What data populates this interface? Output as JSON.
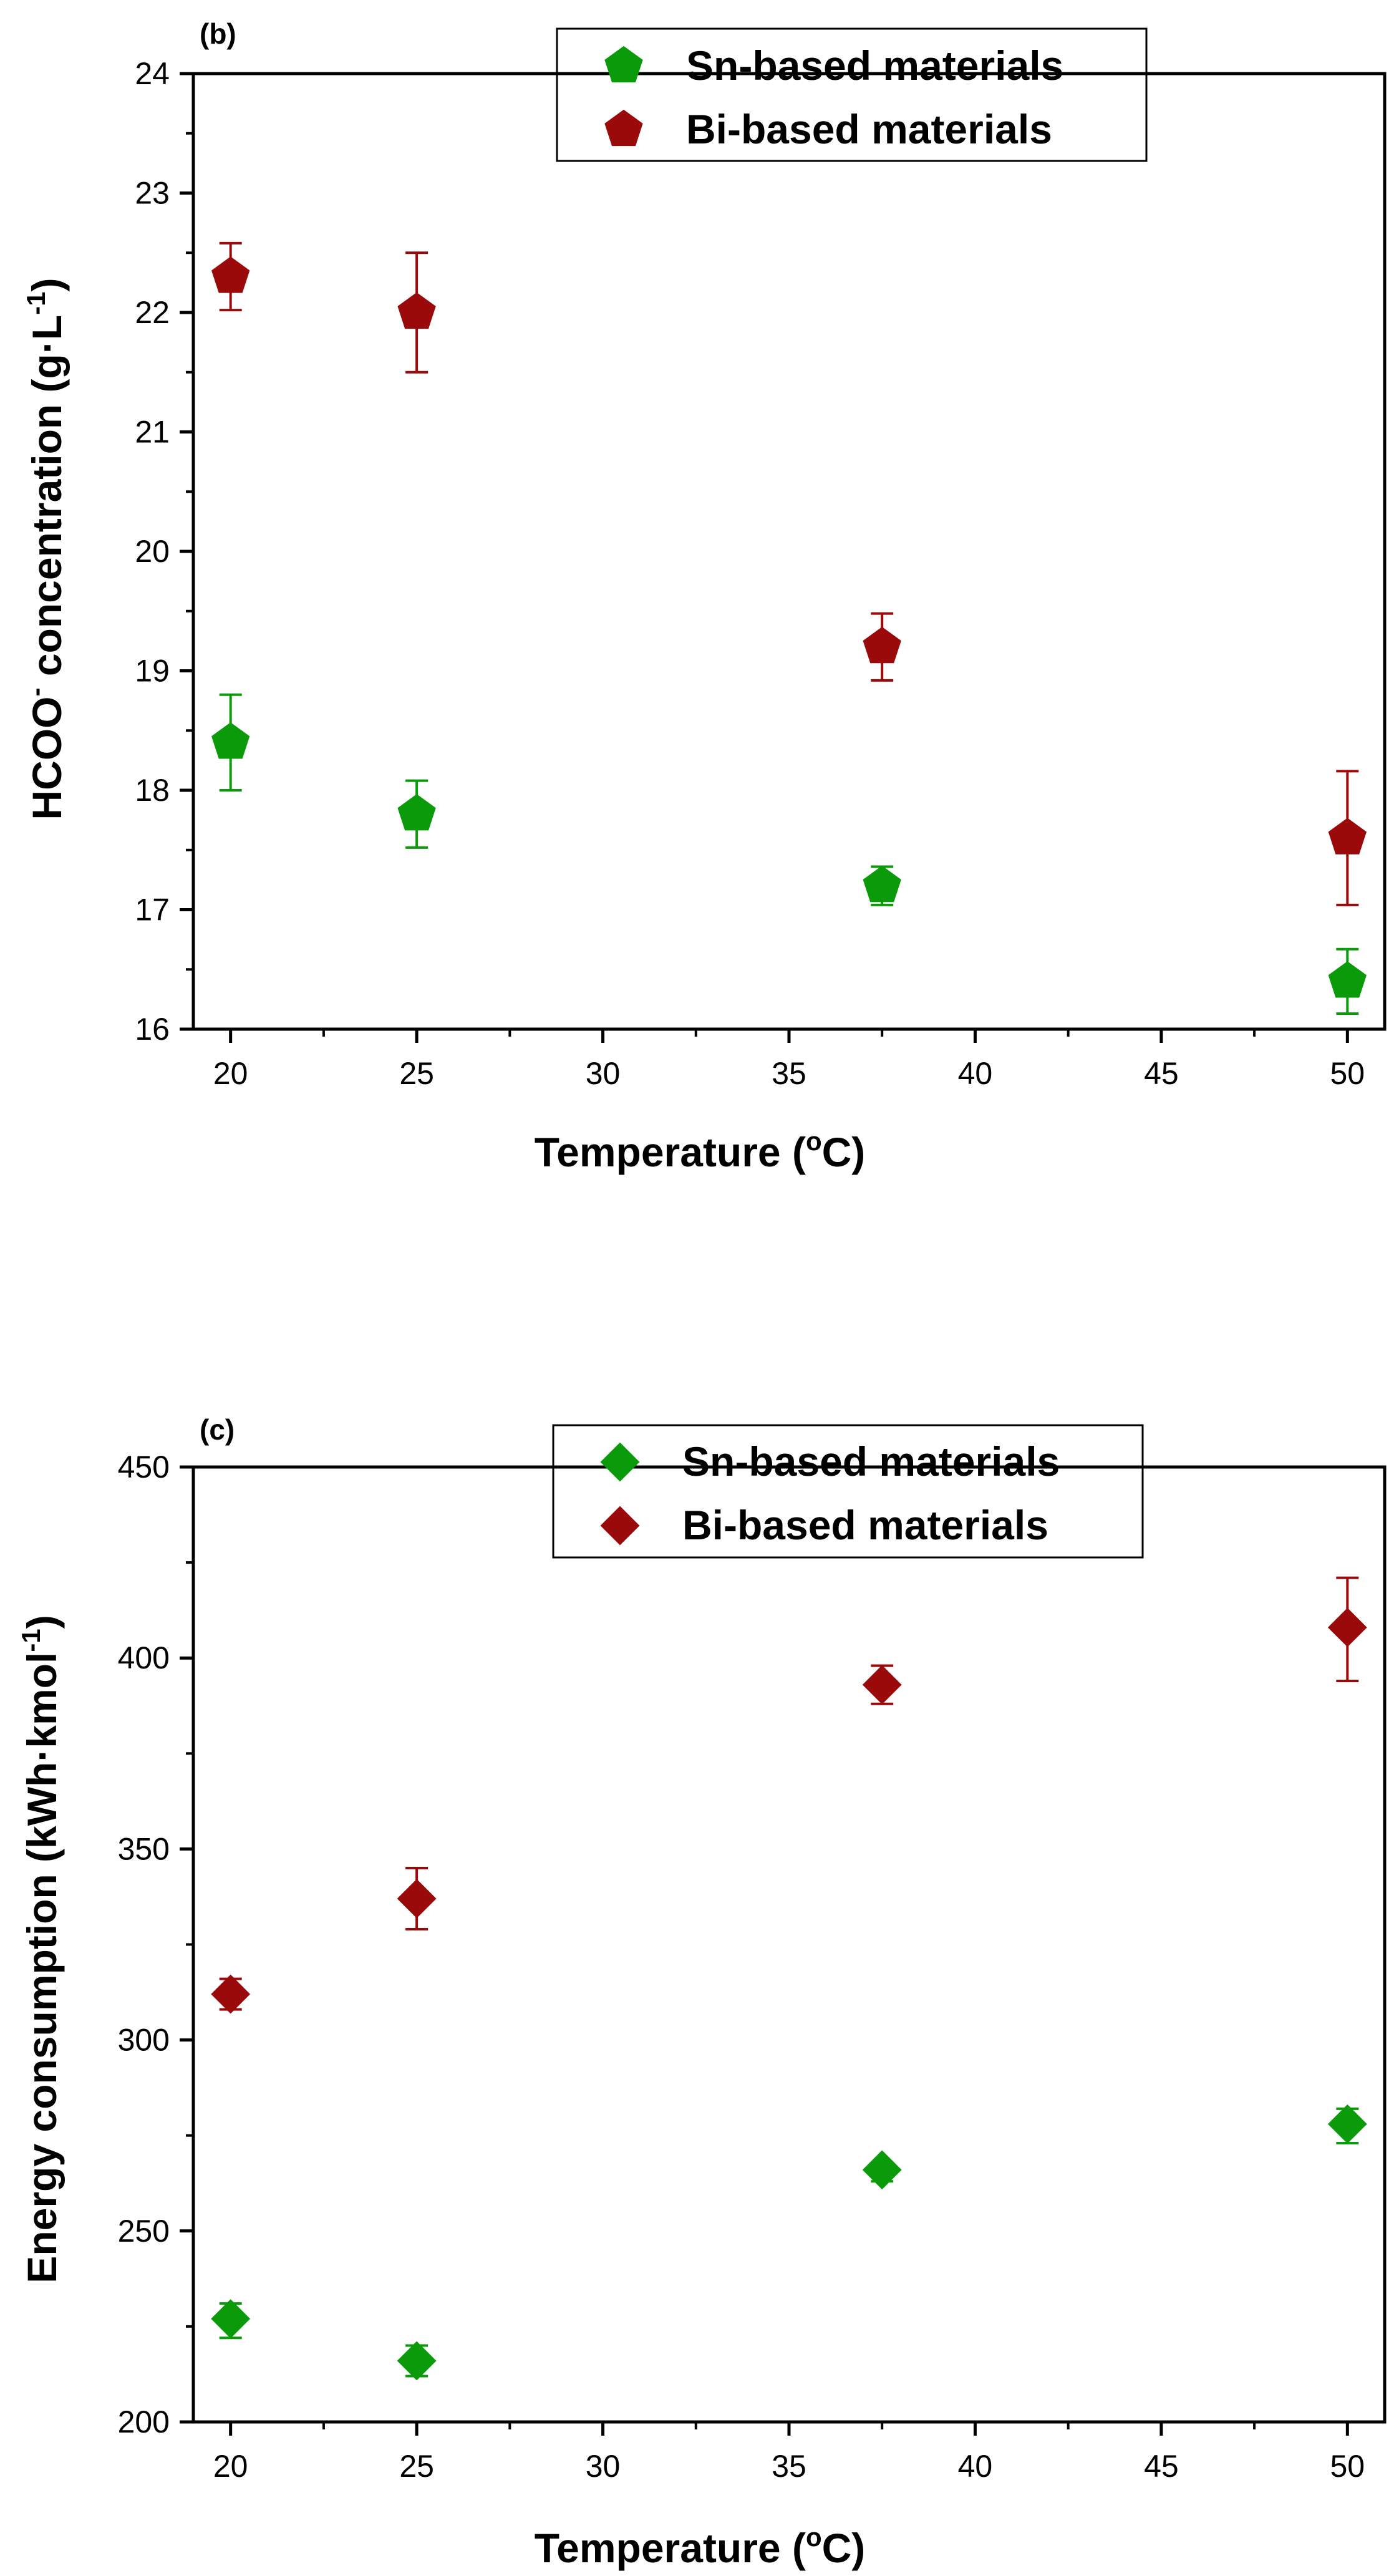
{
  "chart_data": [
    {
      "type": "scatter",
      "panel_label": "(b)",
      "xlabel": "Temperature (",
      "xlabel_sup": "o",
      "xlabel_end": "C)",
      "ylabel_main": "HCOO",
      "ylabel_sup1": "-",
      "ylabel_mid": " concentration (g·L",
      "ylabel_sup2": "-1",
      "ylabel_end": ")",
      "xlim": [
        19,
        51
      ],
      "ylim": [
        16,
        24
      ],
      "xticks": [
        20,
        25,
        30,
        35,
        40,
        45,
        50
      ],
      "yticks": [
        16,
        17,
        18,
        19,
        20,
        21,
        22,
        23,
        24
      ],
      "grid": false,
      "legend_position": "top-right",
      "marker": "pentagon",
      "series": [
        {
          "name": "Sn-based materials",
          "color": "#0a9a0a",
          "x": [
            20,
            25,
            37.5,
            50
          ],
          "y": [
            18.4,
            17.8,
            17.2,
            16.4
          ],
          "err_low": [
            18.0,
            17.52,
            17.04,
            16.13
          ],
          "err_high": [
            18.8,
            18.08,
            17.36,
            16.67
          ]
        },
        {
          "name": "Bi-based materials",
          "color": "#9a0a0a",
          "x": [
            20,
            25,
            37.5,
            50
          ],
          "y": [
            22.3,
            22.0,
            19.2,
            17.6
          ],
          "err_low": [
            22.02,
            21.5,
            18.92,
            17.04
          ],
          "err_high": [
            22.58,
            22.5,
            19.48,
            18.16
          ]
        }
      ]
    },
    {
      "type": "scatter",
      "panel_label": "(c)",
      "xlabel": "Temperature (",
      "xlabel_sup": "o",
      "xlabel_end": "C)",
      "ylabel_main": "Energy consumption (kWh·kmol",
      "ylabel_sup1": "-1",
      "ylabel_end": ")",
      "xlim": [
        19,
        51
      ],
      "ylim": [
        200,
        450
      ],
      "xticks": [
        20,
        25,
        30,
        35,
        40,
        45,
        50
      ],
      "yticks": [
        200,
        250,
        300,
        350,
        400,
        450
      ],
      "grid": false,
      "legend_position": "top-right",
      "marker": "diamond",
      "series": [
        {
          "name": "Sn-based materials",
          "color": "#0a9a0a",
          "x": [
            20,
            25,
            37.5,
            50
          ],
          "y": [
            227,
            216,
            266,
            278
          ],
          "err_low": [
            222,
            212,
            263,
            273
          ],
          "err_high": [
            231,
            220,
            268,
            282
          ]
        },
        {
          "name": "Bi-based materials",
          "color": "#9a0a0a",
          "x": [
            20,
            25,
            37.5,
            50
          ],
          "y": [
            312,
            337,
            393,
            408
          ],
          "err_low": [
            308,
            329,
            388,
            394
          ],
          "err_high": [
            316,
            345,
            398,
            421
          ]
        }
      ]
    }
  ]
}
